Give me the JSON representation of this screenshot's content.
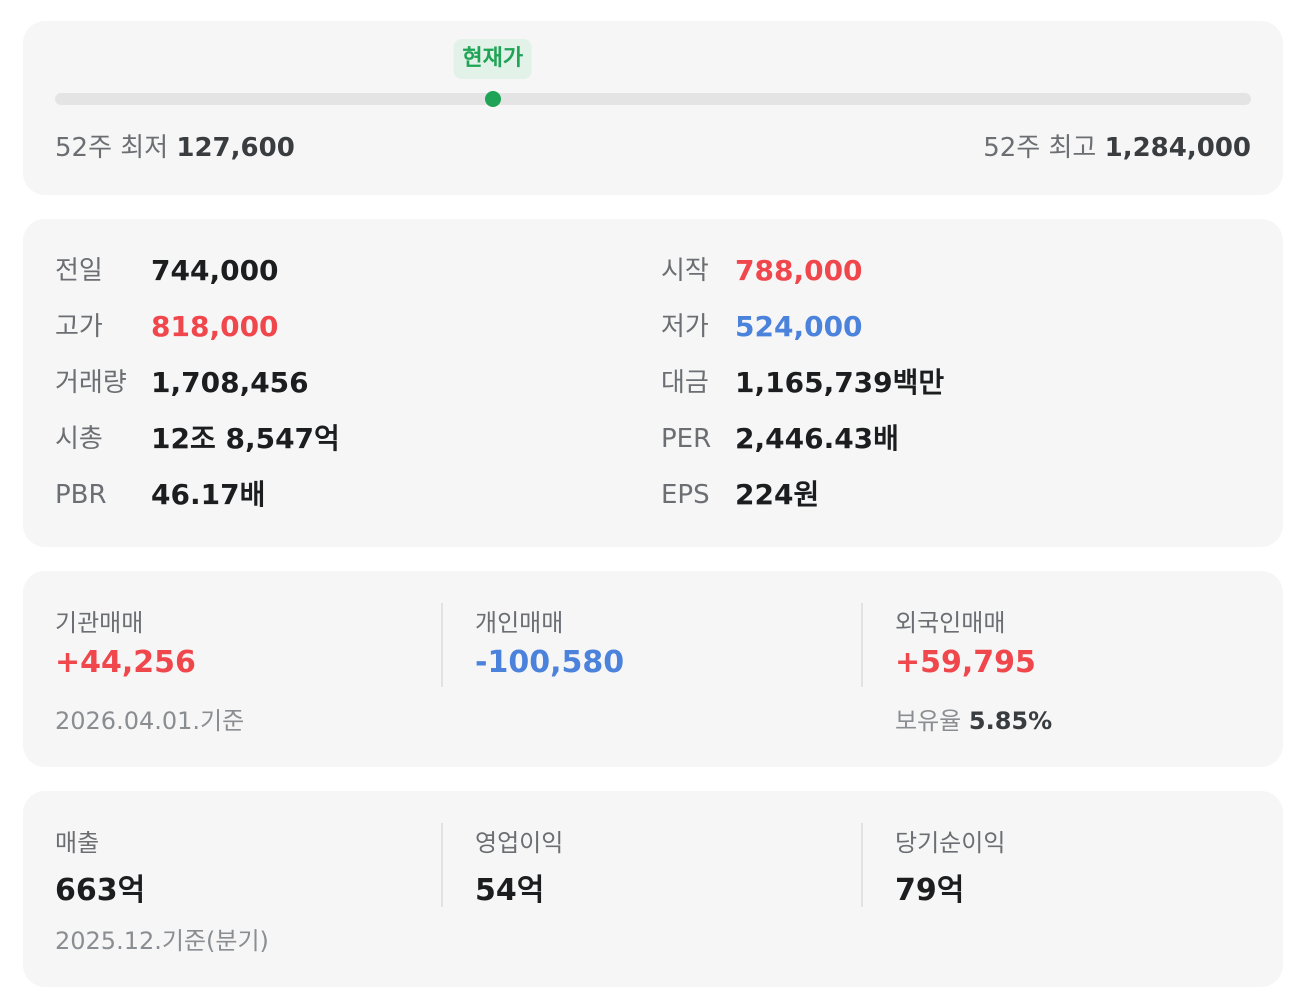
{
  "range_52w": {
    "marker_label": "현재가",
    "current_position_fraction": 0.366,
    "low_label": "52주 최저",
    "low_value": "127,600",
    "high_label": "52주 최고",
    "high_value": "1,284,000",
    "marker_color": "#1fa356"
  },
  "price_info": {
    "left": [
      {
        "label": "전일",
        "value": "744,000",
        "tone": "neutral"
      },
      {
        "label": "고가",
        "value": "818,000",
        "tone": "up"
      },
      {
        "label": "거래량",
        "value": "1,708,456",
        "tone": "neutral"
      },
      {
        "label": "시총",
        "value": "12조 8,547억",
        "tone": "neutral"
      },
      {
        "label": "PBR",
        "value": "46.17배",
        "tone": "neutral"
      }
    ],
    "right": [
      {
        "label": "시작",
        "value": "788,000",
        "tone": "up"
      },
      {
        "label": "저가",
        "value": "524,000",
        "tone": "down"
      },
      {
        "label": "대금",
        "value": "1,165,739백만",
        "tone": "neutral"
      },
      {
        "label": "PER",
        "value": "2,446.43배",
        "tone": "neutral"
      },
      {
        "label": "EPS",
        "value": "224원",
        "tone": "neutral"
      }
    ]
  },
  "investors": {
    "institution": {
      "label": "기관매매",
      "value": "+44,256",
      "tone": "up"
    },
    "individual": {
      "label": "개인매매",
      "value": "-100,580",
      "tone": "down"
    },
    "foreign": {
      "label": "외국인매매",
      "value": "+59,795",
      "tone": "up"
    },
    "as_of": "2026.04.01.기준",
    "holding_label": "보유율",
    "holding_value": "5.85%"
  },
  "financials": {
    "revenue": {
      "label": "매출",
      "value": "663억"
    },
    "operating_profit": {
      "label": "영업이익",
      "value": "54억"
    },
    "net_income": {
      "label": "당기순이익",
      "value": "79억"
    },
    "as_of": "2025.12.기준(분기)"
  },
  "colors": {
    "up": "#f0474d",
    "down": "#4b82dc",
    "accent_green": "#1fa356",
    "card_bg": "#f6f6f6"
  }
}
